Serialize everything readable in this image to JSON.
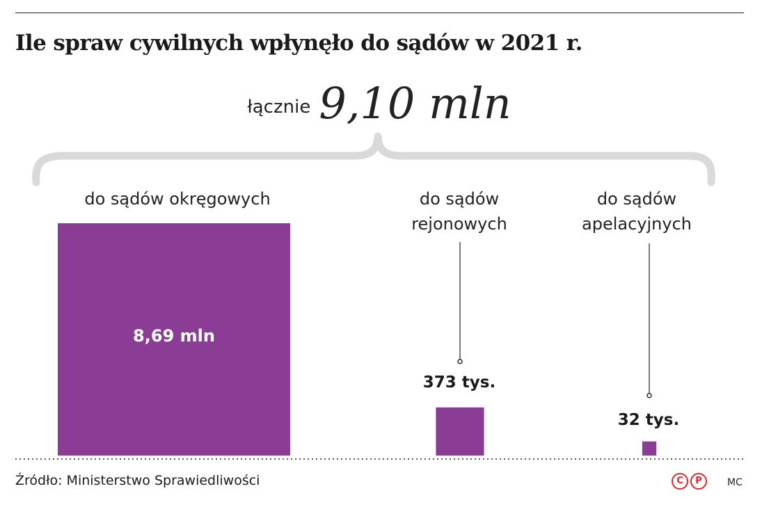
{
  "title": "Ile spraw cywilnych wpłynęło do sądów w 2021 r.",
  "total": {
    "label": "łącznie",
    "value": "9,10 mln"
  },
  "bar_color": "#8b3d96",
  "chart_data": {
    "type": "bar",
    "title": "Ile spraw cywilnych wpłynęło do sądów w 2021 r.",
    "unit": "mln spraw",
    "total": 9.1,
    "categories": [
      [
        "do sądów okręgowych"
      ],
      [
        "do sądów",
        "rejonowych"
      ],
      [
        "do sądów",
        "apelacyjnych"
      ]
    ],
    "values": [
      8.69,
      0.373,
      0.032
    ],
    "value_labels": [
      "8,69 mln",
      "373 tys.",
      "32 tys."
    ]
  },
  "source": "Źródło: Ministerstwo Sprawiedliwości",
  "logo_text": [
    "C",
    "P"
  ],
  "author": "MC"
}
